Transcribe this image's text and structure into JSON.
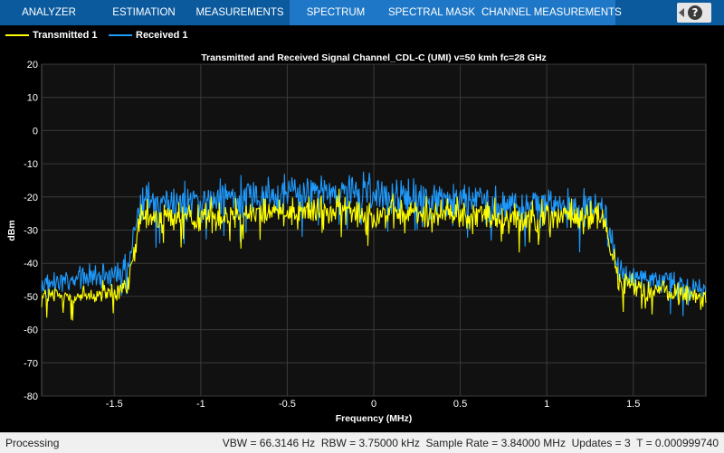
{
  "toolstrip": {
    "tabs": [
      {
        "label": "ANALYZER",
        "active": false
      },
      {
        "label": "ESTIMATION",
        "active": false
      },
      {
        "label": "MEASUREMENTS",
        "active": false
      },
      {
        "label": "SPECTRUM",
        "active": true
      },
      {
        "label": "SPECTRAL MASK",
        "active": false
      },
      {
        "label": "CHANNEL MEASUREMENTS",
        "active": false
      }
    ],
    "help_icon": "help-icon"
  },
  "legend": {
    "items": [
      {
        "label": "Transmitted 1",
        "color": "#ffff00"
      },
      {
        "label": "Received 1",
        "color": "#1e9bff"
      }
    ]
  },
  "chart_data": {
    "type": "line",
    "title": "Transmitted and Received Signal Channel_CDL-C (UMI) v=50 kmh fc=28 GHz",
    "xlabel": "Frequency (MHz)",
    "ylabel": "dBm",
    "xlim": [
      -1.92,
      1.92
    ],
    "ylim": [
      -80,
      20
    ],
    "xticks": [
      -1.5,
      -1,
      -0.5,
      0,
      0.5,
      1,
      1.5
    ],
    "xtick_labels": [
      "-1.5",
      "-1",
      "-0.5",
      "0",
      "0.5",
      "1",
      "1.5"
    ],
    "yticks": [
      20,
      10,
      0,
      -10,
      -20,
      -30,
      -40,
      -50,
      -60,
      -70,
      -80
    ],
    "ytick_labels": [
      "20",
      "10",
      "0",
      "-10",
      "-20",
      "-30",
      "-40",
      "-50",
      "-60",
      "-70",
      "-80"
    ],
    "grid": true,
    "background": "#000000",
    "series": [
      {
        "name": "Transmitted 1",
        "color": "#ffff00",
        "x": [
          -1.92,
          -1.7,
          -1.5,
          -1.42,
          -1.38,
          -1.35,
          -1.2,
          -1.0,
          -0.8,
          -0.5,
          -0.2,
          0,
          0.2,
          0.5,
          0.8,
          1.0,
          1.2,
          1.33,
          1.37,
          1.42,
          1.6,
          1.8,
          1.92
        ],
        "y": [
          -50,
          -50,
          -49,
          -47,
          -35,
          -27,
          -26,
          -26,
          -25,
          -24,
          -24,
          -25,
          -25,
          -25,
          -26,
          -26,
          -26,
          -26,
          -36,
          -46,
          -48,
          -49,
          -50
        ],
        "noise": [
          2.5,
          2.5,
          2.5,
          2.5,
          3,
          3.5,
          3.5,
          3.5,
          3.5,
          3.5,
          3.5,
          3.5,
          3.5,
          3.5,
          3.5,
          3.5,
          3.5,
          3.5,
          3,
          2.5,
          2.5,
          2.5,
          2.5
        ]
      },
      {
        "name": "Received 1",
        "color": "#1e9bff",
        "x": [
          -1.92,
          -1.7,
          -1.5,
          -1.42,
          -1.38,
          -1.35,
          -1.2,
          -1.0,
          -0.8,
          -0.5,
          -0.2,
          0,
          0.2,
          0.5,
          0.8,
          1.0,
          1.2,
          1.33,
          1.37,
          1.42,
          1.6,
          1.8,
          1.92
        ],
        "y": [
          -47,
          -45,
          -43,
          -41,
          -30,
          -22,
          -22,
          -21,
          -20,
          -19,
          -18,
          -19,
          -20,
          -21,
          -22,
          -23,
          -23,
          -23,
          -33,
          -43,
          -46,
          -47,
          -47
        ],
        "noise": [
          3,
          3,
          3,
          3,
          3.5,
          4,
          4,
          4,
          4,
          4,
          4,
          4,
          4,
          4,
          4,
          4,
          4,
          4,
          3.5,
          3,
          3,
          3,
          3
        ]
      }
    ]
  },
  "status": {
    "left": "Processing",
    "right": "VBW = 66.3146 Hz  RBW = 3.75000 kHz  Sample Rate = 3.84000 MHz  Updates = 3  T = 0.000999740"
  }
}
